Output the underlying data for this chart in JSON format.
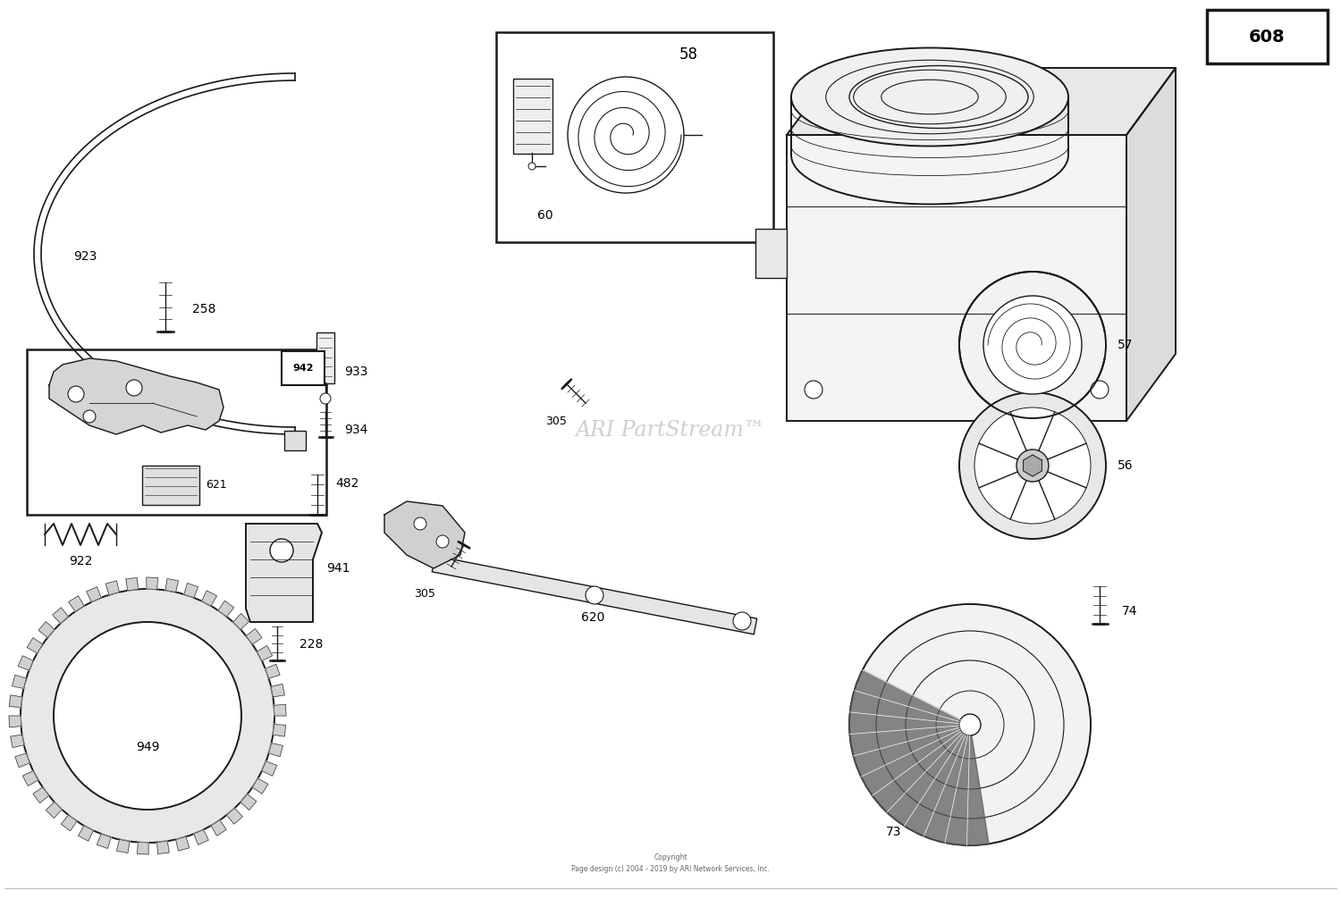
{
  "background_color": "#ffffff",
  "line_color": "#1a1a1a",
  "watermark": "ARI PartStream™",
  "watermark_color": "#bbbbbb",
  "copyright": "Copyright\nPage design (c) 2004 - 2019 by ARI Network Services, Inc.",
  "figsize": [
    15.0,
    10.06
  ],
  "dpi": 100,
  "xlim": [
    0,
    15
  ],
  "ylim": [
    0,
    10.06
  ]
}
